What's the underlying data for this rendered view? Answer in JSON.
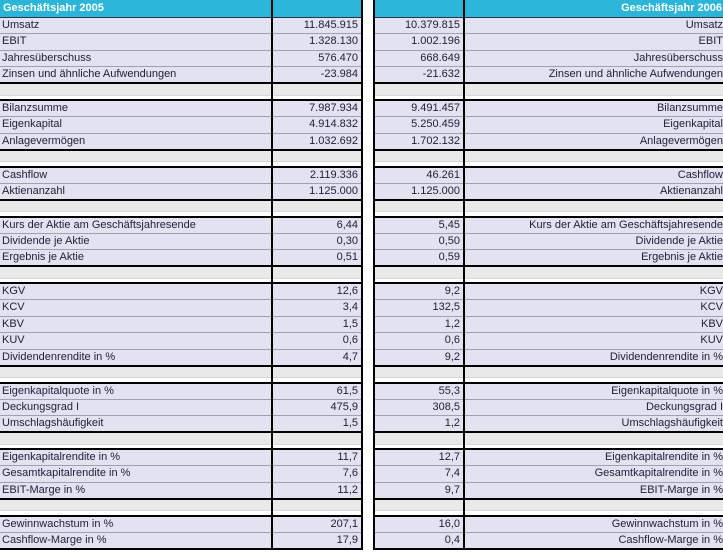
{
  "tables": {
    "left": {
      "header": "Geschäftsjahr 2005"
    },
    "right": {
      "header": "Geschäftsjahr 2006"
    }
  },
  "sections": [
    {
      "rows": [
        {
          "label": "Umsatz",
          "v2005": "11.845.915",
          "v2006": "10.379.815"
        },
        {
          "label": "EBIT",
          "v2005": "1.328.130",
          "v2006": "1.002.196"
        },
        {
          "label": "Jahresüberschuss",
          "v2005": "576.470",
          "v2006": "668.649"
        },
        {
          "label": "Zinsen und ähnliche Aufwendungen",
          "v2005": "-23.984",
          "v2006": "-21.632"
        }
      ]
    },
    {
      "rows": [
        {
          "label": "Bilanzsumme",
          "v2005": "7.987.934",
          "v2006": "9.491.457"
        },
        {
          "label": "Eigenkapital",
          "v2005": "4.914.832",
          "v2006": "5.250.459"
        },
        {
          "label": "Anlagevermögen",
          "v2005": "1.032.692",
          "v2006": "1.702.132"
        }
      ]
    },
    {
      "rows": [
        {
          "label": "Cashflow",
          "v2005": "2.119.336",
          "v2006": "46.261"
        },
        {
          "label": "Aktienanzahl",
          "v2005": "1.125.000",
          "v2006": "1.125.000"
        }
      ]
    },
    {
      "rows": [
        {
          "label": "Kurs der Aktie am Geschäftsjahresende",
          "v2005": "6,44",
          "v2006": "5,45"
        },
        {
          "label": "Dividende je Aktie",
          "v2005": "0,30",
          "v2006": "0,50"
        },
        {
          "label": "Ergebnis je Aktie",
          "v2005": "0,51",
          "v2006": "0,59"
        }
      ]
    },
    {
      "rows": [
        {
          "label": "KGV",
          "v2005": "12,6",
          "v2006": "9,2"
        },
        {
          "label": "KCV",
          "v2005": "3,4",
          "v2006": "132,5"
        },
        {
          "label": "KBV",
          "v2005": "1,5",
          "v2006": "1,2"
        },
        {
          "label": "KUV",
          "v2005": "0,6",
          "v2006": "0,6"
        },
        {
          "label": "Dividendenrendite in %",
          "v2005": "4,7",
          "v2006": "9,2"
        }
      ]
    },
    {
      "rows": [
        {
          "label": "Eigenkapitalquote in %",
          "v2005": "61,5",
          "v2006": "55,3"
        },
        {
          "label": "Deckungsgrad I",
          "v2005": "475,9",
          "v2006": "308,5"
        },
        {
          "label": "Umschlagshäufigkeit",
          "v2005": "1,5",
          "v2006": "1,2"
        }
      ]
    },
    {
      "rows": [
        {
          "label": "Eigenkapitalrendite in %",
          "v2005": "11,7",
          "v2006": "12,7"
        },
        {
          "label": "Gesamtkapitalrendite in %",
          "v2005": "7,6",
          "v2006": "7,4"
        },
        {
          "label": "EBIT-Marge in %",
          "v2005": "11,2",
          "v2006": "9,7"
        }
      ]
    },
    {
      "rows": [
        {
          "label": "Gewinnwachstum in %",
          "v2005": "207,1",
          "v2006": "16,0"
        },
        {
          "label": "Cashflow-Marge in %",
          "v2005": "17,9",
          "v2006": "0,4"
        }
      ]
    }
  ],
  "colors": {
    "header_bg": "#2BB5D9",
    "header_text": "#FFFFFF",
    "row_bg": "#E2E2F0",
    "separator_bg": "#E9E9E9",
    "gap_bg": "#FFFFFF",
    "section_border": "#000000",
    "row_divider": "#A0A0B0",
    "separator_divider": "#D8D8D8",
    "text": "#21213A"
  }
}
